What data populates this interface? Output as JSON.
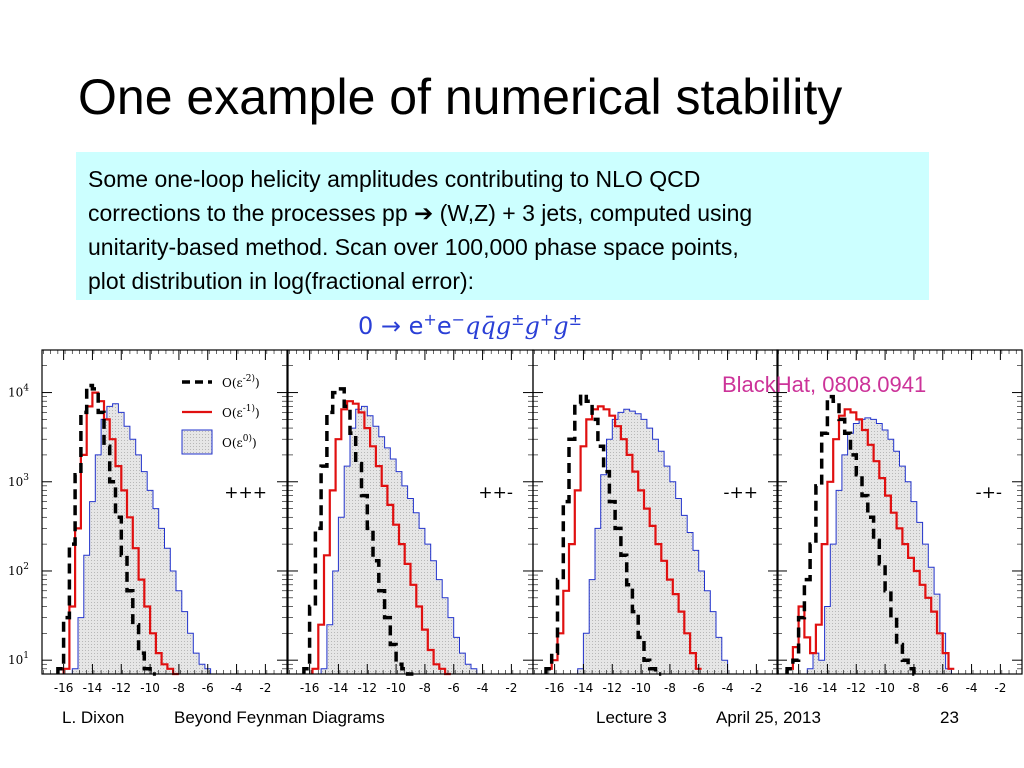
{
  "slide": {
    "title": "One example of numerical stability",
    "text_lines": [
      "Some one-loop helicity amplitudes contributing to NLO QCD",
      "corrections to the processes pp ➔ (W,Z) + 3 jets, computed using",
      "unitarity-based method.  Scan over 100,000 phase space points,",
      "plot distribution in log(fractional error):"
    ],
    "process": {
      "prefix": "0 → e",
      "ep_sup": "+",
      "em": "e",
      "em_sup": "−",
      "partons": "qq̄g",
      "g1_sup": "±",
      "g2": "g",
      "g2_sup": "+",
      "g3": "g",
      "g3_sup": "±"
    },
    "credit": "BlackHat, 0808.0941",
    "footer": {
      "author": "L. Dixon",
      "course": "Beyond Feynman Diagrams",
      "lecture": "Lecture 3",
      "date": "April 25, 2013",
      "page": "23"
    },
    "colors": {
      "box_bg": "#ccffff",
      "process_text": "#2a3fd6",
      "credit_text": "#cc3399"
    }
  },
  "chart_data": [
    {
      "type": "line",
      "panel_label": "+++",
      "x_ticks": [
        "-16",
        "-14",
        "-12",
        "-10",
        "-8",
        "-6",
        "-4",
        "-2"
      ],
      "y_ticks": [
        "10^1",
        "10^2",
        "10^3",
        "10^4"
      ],
      "y_scale": "log",
      "xlim": [
        -17.5,
        -0.5
      ],
      "ylim": [
        7,
        30000
      ],
      "legend": [
        "O(ε^-2)",
        "O(ε^-1)",
        "O(ε^0)"
      ],
      "series": [
        {
          "name": "O(ε^-2)",
          "style": "dashed-black",
          "x": [
            -16.2,
            -15.8,
            -15.4,
            -15,
            -14.6,
            -14.2,
            -13.8,
            -13.4,
            -13,
            -12.6,
            -12.2,
            -11.8,
            -11.4,
            -11,
            -10.6,
            -10.2,
            -9.8
          ],
          "y": [
            8,
            30,
            200,
            1200,
            6000,
            12000,
            11000,
            6000,
            2500,
            1000,
            400,
            150,
            60,
            25,
            12,
            8,
            7
          ]
        },
        {
          "name": "O(ε^-1)",
          "style": "solid-red",
          "x": [
            -15.8,
            -15.4,
            -15,
            -14.6,
            -14.2,
            -13.8,
            -13.4,
            -13,
            -12.6,
            -12.2,
            -11.8,
            -11.4,
            -11,
            -10.6,
            -10.2,
            -9.8,
            -9.4,
            -9,
            -8.6,
            -8.2
          ],
          "y": [
            8,
            40,
            300,
            2000,
            7000,
            10000,
            8000,
            5000,
            3000,
            1500,
            800,
            400,
            180,
            80,
            40,
            20,
            12,
            9,
            8,
            7
          ]
        },
        {
          "name": "O(ε^0)",
          "style": "filled-blue",
          "x": [
            -15.2,
            -14.8,
            -14.4,
            -14,
            -13.6,
            -13.2,
            -12.8,
            -12.4,
            -12,
            -11.6,
            -11.2,
            -10.8,
            -10.4,
            -10,
            -9.6,
            -9.2,
            -8.8,
            -8.4,
            -8,
            -7.6,
            -7.2,
            -6.8,
            -6.4,
            -6,
            -5.6
          ],
          "y": [
            8,
            30,
            150,
            600,
            2000,
            5000,
            7000,
            7500,
            6000,
            4200,
            3000,
            2000,
            1300,
            800,
            500,
            300,
            180,
            100,
            60,
            35,
            20,
            12,
            9,
            8,
            7
          ]
        }
      ]
    },
    {
      "type": "line",
      "panel_label": "++-",
      "x_ticks": [
        "-16",
        "-14",
        "-12",
        "-10",
        "-8",
        "-6",
        "-4",
        "-2"
      ],
      "y_ticks": [
        "10^1",
        "10^2",
        "10^3",
        "10^4"
      ],
      "y_scale": "log",
      "xlim": [
        -17.5,
        -0.5
      ],
      "ylim": [
        7,
        30000
      ],
      "series": [
        {
          "name": "O(ε^-2)",
          "style": "dashed-black",
          "x": [
            -16.2,
            -15.8,
            -15.4,
            -15,
            -14.6,
            -14.2,
            -13.8,
            -13.4,
            -13,
            -12.6,
            -12.2,
            -11.8,
            -11.4,
            -11,
            -10.6,
            -10.2,
            -9.8,
            -9.4,
            -9
          ],
          "y": [
            8,
            40,
            300,
            1500,
            6000,
            10000,
            11000,
            7000,
            3500,
            1600,
            700,
            300,
            130,
            60,
            30,
            15,
            9,
            8,
            7
          ]
        },
        {
          "name": "O(ε^-1)",
          "style": "solid-red",
          "x": [
            -15.6,
            -15.2,
            -14.8,
            -14.4,
            -14,
            -13.6,
            -13.2,
            -12.8,
            -12.4,
            -12,
            -11.6,
            -11.2,
            -10.8,
            -10.4,
            -10,
            -9.6,
            -9.2,
            -8.8,
            -8.4,
            -8,
            -7.6,
            -7.2,
            -6.8,
            -6.4
          ],
          "y": [
            8,
            25,
            150,
            800,
            3000,
            6500,
            8000,
            7500,
            6000,
            4000,
            2500,
            1500,
            900,
            550,
            330,
            200,
            120,
            70,
            40,
            22,
            13,
            9,
            8,
            7
          ]
        },
        {
          "name": "O(ε^0)",
          "style": "filled-blue",
          "x": [
            -15,
            -14.6,
            -14.2,
            -13.8,
            -13.4,
            -13,
            -12.6,
            -12.2,
            -11.8,
            -11.4,
            -11,
            -10.6,
            -10.2,
            -9.8,
            -9.4,
            -9,
            -8.6,
            -8.2,
            -7.8,
            -7.4,
            -7,
            -6.6,
            -6.2,
            -5.8,
            -5.4,
            -5,
            -4.6,
            -4.2
          ],
          "y": [
            8,
            25,
            100,
            400,
            1500,
            4000,
            6500,
            7000,
            5500,
            4200,
            3200,
            2400,
            1800,
            1300,
            900,
            650,
            450,
            300,
            200,
            130,
            80,
            50,
            30,
            18,
            12,
            9,
            8,
            7
          ]
        }
      ]
    },
    {
      "type": "line",
      "panel_label": "-++",
      "x_ticks": [
        "-16",
        "-14",
        "-12",
        "-10",
        "-8",
        "-6",
        "-4",
        "-2"
      ],
      "y_ticks": [
        "10^1",
        "10^2",
        "10^3",
        "10^4"
      ],
      "y_scale": "log",
      "xlim": [
        -17.5,
        -0.5
      ],
      "ylim": [
        7,
        30000
      ],
      "series": [
        {
          "name": "O(ε^-2)",
          "style": "dashed-black",
          "x": [
            -16.4,
            -16,
            -15.6,
            -15.2,
            -14.8,
            -14.4,
            -14,
            -13.6,
            -13.2,
            -12.8,
            -12.4,
            -12,
            -11.6,
            -11.2,
            -10.8,
            -10.4,
            -10,
            -9.6,
            -9.2,
            -8.8
          ],
          "y": [
            8,
            12,
            80,
            600,
            3000,
            7500,
            9500,
            8000,
            5000,
            2500,
            1300,
            600,
            300,
            150,
            70,
            35,
            18,
            10,
            8,
            7
          ]
        },
        {
          "name": "O(ε^-1)",
          "style": "solid-red",
          "x": [
            -16.4,
            -16,
            -15.6,
            -15.2,
            -14.8,
            -14.4,
            -14,
            -13.6,
            -13.2,
            -12.8,
            -12.4,
            -12,
            -11.6,
            -11.2,
            -10.8,
            -10.4,
            -10,
            -9.6,
            -9.2,
            -8.8,
            -8.4,
            -8,
            -7.6,
            -7.2,
            -6.8,
            -6.4,
            -6
          ],
          "y": [
            8,
            10,
            20,
            60,
            200,
            800,
            2500,
            5000,
            6500,
            7000,
            6500,
            5500,
            4200,
            3000,
            2000,
            1300,
            800,
            500,
            320,
            200,
            130,
            80,
            55,
            35,
            20,
            12,
            8
          ]
        },
        {
          "name": "O(ε^0)",
          "style": "filled-blue",
          "x": [
            -14.2,
            -13.8,
            -13.4,
            -13,
            -12.6,
            -12.2,
            -11.8,
            -11.4,
            -11,
            -10.6,
            -10.2,
            -9.8,
            -9.4,
            -9,
            -8.6,
            -8.2,
            -7.8,
            -7.4,
            -7,
            -6.6,
            -6.2,
            -5.8,
            -5.4,
            -5,
            -4.6,
            -4.2,
            -3.8
          ],
          "y": [
            8,
            20,
            80,
            300,
            1200,
            3000,
            5000,
            6000,
            6500,
            6200,
            5800,
            5000,
            4000,
            3000,
            2200,
            1500,
            1000,
            650,
            420,
            270,
            170,
            100,
            60,
            35,
            18,
            10,
            7
          ]
        }
      ]
    },
    {
      "type": "line",
      "panel_label": "-+-",
      "x_ticks": [
        "-16",
        "-14",
        "-12",
        "-10",
        "-8",
        "-6",
        "-4",
        "-2"
      ],
      "y_ticks": [
        "10^1",
        "10^2",
        "10^3",
        "10^4"
      ],
      "y_scale": "log",
      "xlim": [
        -17.5,
        -0.5
      ],
      "ylim": [
        7,
        30000
      ],
      "series": [
        {
          "name": "O(ε^-2)",
          "style": "dashed-black",
          "x": [
            -16.6,
            -16.2,
            -15.8,
            -15.4,
            -15,
            -14.6,
            -14.2,
            -13.8,
            -13.4,
            -13,
            -12.6,
            -12.2,
            -11.8,
            -11.4,
            -11,
            -10.6,
            -10.2,
            -9.8,
            -9.4,
            -9,
            -8.6,
            -8.2,
            -7.8
          ],
          "y": [
            8,
            10,
            30,
            80,
            200,
            900,
            3500,
            9000,
            8000,
            5000,
            3500,
            2000,
            1200,
            700,
            400,
            220,
            120,
            60,
            30,
            15,
            10,
            8,
            7
          ]
        },
        {
          "name": "O(ε^-1)",
          "style": "solid-red",
          "x": [
            -16.6,
            -16.2,
            -15.8,
            -15.4,
            -15,
            -14.6,
            -14.2,
            -13.8,
            -13.4,
            -13,
            -12.6,
            -12.2,
            -11.8,
            -11.4,
            -11,
            -10.6,
            -10.2,
            -9.8,
            -9.4,
            -9,
            -8.6,
            -8.2,
            -7.8,
            -7.4,
            -7,
            -6.6,
            -6.2,
            -5.8,
            -5.4
          ],
          "y": [
            8,
            14,
            40,
            18,
            12,
            25,
            200,
            1000,
            3000,
            5500,
            6500,
            6000,
            5000,
            3800,
            2600,
            1700,
            1100,
            700,
            450,
            300,
            200,
            140,
            100,
            70,
            50,
            35,
            20,
            12,
            8
          ]
        },
        {
          "name": "O(ε^0)",
          "style": "filled-blue",
          "x": [
            -15.2,
            -14.8,
            -14.4,
            -14,
            -13.6,
            -13.2,
            -12.8,
            -12.4,
            -12,
            -11.6,
            -11.2,
            -10.8,
            -10.4,
            -10,
            -9.6,
            -9.2,
            -8.8,
            -8.4,
            -8,
            -7.6,
            -7.2,
            -6.8,
            -6.4,
            -6,
            -5.6
          ],
          "y": [
            8,
            12,
            10,
            40,
            200,
            800,
            2000,
            3500,
            4500,
            5000,
            5200,
            5000,
            4500,
            3800,
            3000,
            2200,
            1500,
            1000,
            600,
            350,
            200,
            110,
            55,
            20,
            8
          ]
        }
      ]
    }
  ]
}
